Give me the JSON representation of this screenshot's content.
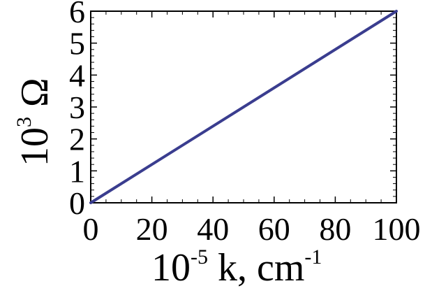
{
  "chart_data": {
    "type": "line",
    "title": "",
    "xlabel": {
      "base": "10",
      "exp": "-5",
      "rest": " k, cm",
      "unit_exp": "-1"
    },
    "ylabel": {
      "base": "10",
      "exp": "3",
      "rest": " Ω"
    },
    "xlim": [
      0,
      100
    ],
    "ylim": [
      0,
      6
    ],
    "xticks": [
      "0",
      "20",
      "40",
      "60",
      "80",
      "100"
    ],
    "yticks": [
      "0",
      "1",
      "2",
      "3",
      "4",
      "5",
      "6"
    ],
    "grid": false,
    "legend": "none",
    "series": [
      {
        "x": [
          0,
          100
        ],
        "y": [
          0,
          6
        ],
        "color": "#3a3d8f"
      }
    ]
  }
}
